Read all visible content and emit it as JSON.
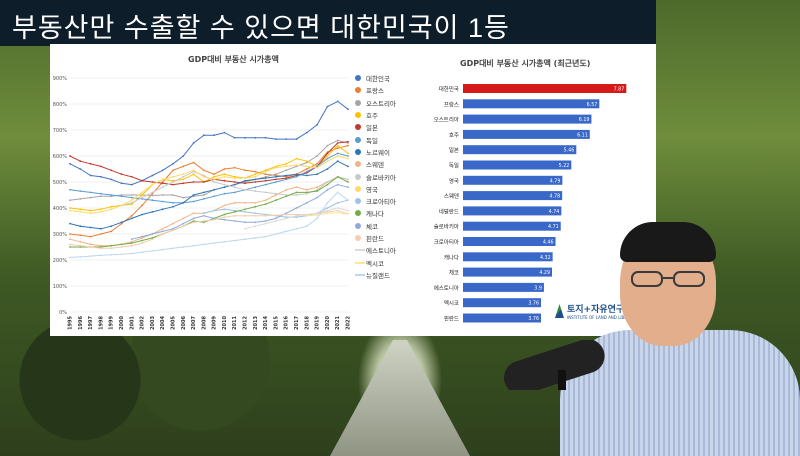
{
  "title": "부동산만 수출할 수 있으면 대한민국이 1등",
  "colors": {
    "title_bar": "#0e1d2a",
    "bar_highlight": "#d61a1a",
    "bar": "#3a68c9"
  },
  "logo": {
    "name": "토지+자유연구소",
    "sub": "INSTITUTE OF LAND AND LIBERTY"
  },
  "chart_data": [
    {
      "type": "line",
      "title": "GDP대비 부동산 시가총액",
      "x": [
        "1995",
        "1996",
        "1997",
        "1998",
        "1999",
        "2000",
        "2001",
        "2002",
        "2003",
        "2004",
        "2005",
        "2006",
        "2007",
        "2008",
        "2009",
        "2010",
        "2011",
        "2012",
        "2013",
        "2014",
        "2015",
        "2016",
        "2017",
        "2018",
        "2019",
        "2020",
        "2021",
        "2022"
      ],
      "ylim": [
        0,
        900
      ],
      "yticks": [
        "0%",
        "100%",
        "200%",
        "300%",
        "400%",
        "500%",
        "600%",
        "700%",
        "800%",
        "900%"
      ],
      "grid": true,
      "legend": "right",
      "series": [
        {
          "name": "대한민국",
          "color": "#4472c4",
          "values": [
            570,
            550,
            525,
            520,
            510,
            495,
            490,
            505,
            525,
            545,
            570,
            600,
            650,
            680,
            680,
            690,
            670,
            670,
            670,
            670,
            665,
            665,
            665,
            690,
            720,
            790,
            810,
            780
          ]
        },
        {
          "name": "프랑스",
          "color": "#ed7d31",
          "values": [
            300,
            295,
            290,
            300,
            310,
            340,
            370,
            410,
            455,
            500,
            545,
            560,
            575,
            545,
            530,
            550,
            555,
            545,
            540,
            530,
            525,
            520,
            530,
            550,
            570,
            615,
            630,
            640
          ]
        },
        {
          "name": "오스트리아",
          "color": "#a5a5a5",
          "values": [
            430,
            435,
            440,
            445,
            445,
            450,
            450,
            450,
            448,
            450,
            450,
            440,
            445,
            450,
            470,
            480,
            490,
            500,
            510,
            520,
            530,
            545,
            560,
            575,
            600,
            640,
            660,
            650
          ]
        },
        {
          "name": "호주",
          "color": "#ffc000",
          "values": [
            400,
            395,
            390,
            395,
            405,
            410,
            415,
            450,
            490,
            510,
            505,
            510,
            530,
            500,
            520,
            530,
            520,
            515,
            530,
            545,
            560,
            570,
            590,
            580,
            560,
            600,
            640,
            610
          ]
        },
        {
          "name": "일본",
          "color": "#c0392b",
          "values": [
            600,
            580,
            570,
            560,
            545,
            530,
            520,
            505,
            500,
            495,
            490,
            495,
            500,
            500,
            510,
            505,
            500,
            495,
            500,
            505,
            510,
            515,
            525,
            535,
            560,
            610,
            650,
            655
          ]
        },
        {
          "name": "독일",
          "color": "#5b9bd5",
          "values": [
            470,
            465,
            460,
            455,
            450,
            445,
            440,
            435,
            430,
            425,
            420,
            420,
            425,
            435,
            445,
            455,
            460,
            470,
            480,
            490,
            500,
            510,
            520,
            540,
            560,
            590,
            610,
            600
          ]
        },
        {
          "name": "노르웨이",
          "color": "#2e75b6",
          "values": [
            340,
            330,
            325,
            320,
            330,
            345,
            360,
            375,
            385,
            395,
            405,
            420,
            450,
            460,
            470,
            480,
            490,
            505,
            510,
            515,
            520,
            525,
            530,
            525,
            530,
            550,
            580,
            560
          ]
        },
        {
          "name": "스웨덴",
          "color": "#f4b183",
          "values": [
            280,
            270,
            260,
            255,
            255,
            260,
            270,
            285,
            300,
            320,
            340,
            360,
            380,
            380,
            390,
            410,
            420,
            420,
            420,
            430,
            450,
            470,
            480,
            470,
            480,
            500,
            520,
            510
          ]
        },
        {
          "name": "슬로바키아",
          "color": "#c9c9c9",
          "values": [
            null,
            null,
            null,
            null,
            null,
            410,
            420,
            440,
            460,
            480,
            500,
            520,
            540,
            525,
            500,
            490,
            480,
            470,
            465,
            460,
            455,
            450,
            450,
            455,
            470,
            500,
            520,
            510
          ]
        },
        {
          "name": "영국",
          "color": "#ffd966",
          "values": [
            390,
            385,
            380,
            385,
            395,
            410,
            430,
            460,
            490,
            510,
            520,
            530,
            545,
            520,
            510,
            520,
            515,
            515,
            520,
            540,
            555,
            560,
            565,
            560,
            555,
            580,
            600,
            590
          ]
        },
        {
          "name": "크로아티아",
          "color": "#9dc3e6",
          "values": [
            null,
            null,
            null,
            null,
            null,
            null,
            null,
            null,
            null,
            null,
            null,
            null,
            null,
            380,
            390,
            395,
            390,
            385,
            380,
            375,
            370,
            365,
            365,
            370,
            380,
            400,
            420,
            430
          ]
        },
        {
          "name": "캐나다",
          "color": "#70ad47",
          "values": [
            250,
            250,
            250,
            250,
            255,
            260,
            265,
            275,
            285,
            300,
            315,
            330,
            350,
            345,
            360,
            375,
            385,
            395,
            405,
            415,
            430,
            445,
            460,
            460,
            465,
            490,
            520,
            500
          ]
        },
        {
          "name": "체코",
          "color": "#8faadc",
          "values": [
            null,
            null,
            null,
            null,
            null,
            null,
            280,
            290,
            300,
            310,
            320,
            340,
            360,
            370,
            360,
            355,
            350,
            345,
            345,
            350,
            360,
            380,
            400,
            420,
            440,
            470,
            490,
            480
          ]
        },
        {
          "name": "핀란드",
          "color": "#f8cbad",
          "values": [
            260,
            255,
            250,
            245,
            245,
            250,
            255,
            265,
            280,
            300,
            315,
            330,
            345,
            350,
            355,
            365,
            370,
            370,
            370,
            370,
            372,
            375,
            375,
            375,
            378,
            385,
            390,
            378
          ]
        },
        {
          "name": "에스토니아",
          "color": "#dbdbdb",
          "values": [
            null,
            null,
            null,
            null,
            null,
            null,
            null,
            null,
            null,
            null,
            null,
            null,
            null,
            null,
            null,
            null,
            null,
            320,
            330,
            340,
            350,
            360,
            370,
            375,
            380,
            390,
            400,
            390
          ]
        },
        {
          "name": "멕시코",
          "color": "#ffe699",
          "values": [
            null,
            null,
            null,
            null,
            null,
            null,
            null,
            null,
            null,
            null,
            null,
            null,
            null,
            null,
            null,
            null,
            null,
            null,
            null,
            null,
            null,
            null,
            null,
            370,
            372,
            380,
            382,
            376
          ]
        },
        {
          "name": "뉴질랜드",
          "color": "#bdd7ee",
          "values": [
            210,
            212,
            215,
            218,
            220,
            222,
            225,
            230,
            235,
            240,
            245,
            250,
            255,
            260,
            265,
            270,
            275,
            280,
            285,
            290,
            300,
            310,
            320,
            330,
            360,
            420,
            460,
            430
          ]
        }
      ]
    },
    {
      "type": "bar",
      "title": "GDP대비 부동산 시가총액 (최근년도)",
      "categories": [
        "대한민국",
        "프랑스",
        "오스트리아",
        "호주",
        "일본",
        "독일",
        "영국",
        "스웨덴",
        "네덜란드",
        "슬로바키아",
        "크로아티아",
        "캐나다",
        "체코",
        "에스토니아",
        "멕시코",
        "핀란드"
      ],
      "values": [
        7.87,
        6.57,
        6.19,
        6.11,
        5.46,
        5.22,
        4.79,
        4.78,
        4.74,
        4.71,
        4.46,
        4.32,
        4.29,
        3.9,
        3.76,
        3.76
      ],
      "labels": [
        "7.87",
        "6.57",
        "6.19",
        "6.11",
        "5.46",
        "5.22",
        "4.79",
        "4.78",
        "4.74",
        "4.71",
        "4.46",
        "4.32",
        "4.29",
        "3.9",
        "3.76",
        "3.76"
      ],
      "xlim": [
        0,
        8
      ]
    }
  ]
}
